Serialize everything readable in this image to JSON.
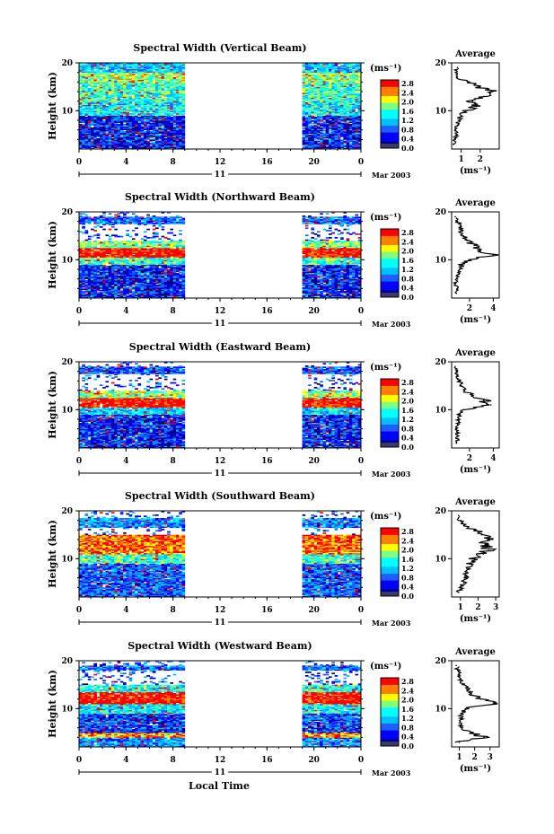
{
  "figure": {
    "x_axis_title": "Local Time",
    "y_axis_title": "Height (km)",
    "date_label": "Mar 2003",
    "day_label": "11",
    "colorbar_unit": "(ms⁻¹)",
    "profile_title": "Average",
    "profile_unit": "(ms⁻¹)",
    "x_ticks": [
      "0",
      "4",
      "8",
      "12",
      "16",
      "20",
      "0"
    ],
    "y_ticks": [
      "20",
      "10"
    ],
    "colorbar_ticks": [
      "2.8",
      "2.4",
      "2.0",
      "1.6",
      "1.2",
      "0.8",
      "0.4",
      "0.0"
    ],
    "colors": {
      "scale": [
        "#00007f",
        "#0000ff",
        "#1f5fff",
        "#00bfff",
        "#00ffff",
        "#7fff7f",
        "#ffff00",
        "#ff7f00",
        "#ff0000"
      ],
      "no_data": "#ffffff",
      "axis": "#000000"
    }
  },
  "chart_data": [
    {
      "type": "heatmap",
      "title": "Spectral Width (Vertical Beam)",
      "xlabel": "Local Time",
      "ylabel": "Height (km)",
      "xlim": [
        0,
        24
      ],
      "ylim": [
        2,
        20
      ],
      "data_gap_hours": [
        8.8,
        18.8
      ],
      "colorbar": {
        "label": "(ms⁻¹)",
        "range": [
          0.0,
          3.0
        ]
      },
      "average_profile": {
        "title": "Average",
        "xlabel": "(ms⁻¹)",
        "xticks": [
          "1",
          "2"
        ],
        "xlim": [
          0.5,
          3.0
        ],
        "height": [
          3,
          4,
          5,
          6,
          7,
          8,
          9,
          10,
          11,
          12,
          13,
          14,
          15,
          16,
          17,
          18,
          19
        ],
        "value": [
          0.6,
          0.7,
          0.8,
          0.7,
          0.8,
          0.9,
          1.0,
          1.3,
          1.8,
          1.6,
          2.2,
          2.6,
          2.0,
          1.4,
          0.8,
          0.7,
          0.8
        ]
      }
    },
    {
      "type": "heatmap",
      "title": "Spectral Width (Northward Beam)",
      "xlabel": "Local Time",
      "ylabel": "Height (km)",
      "xlim": [
        0,
        24
      ],
      "ylim": [
        2,
        20
      ],
      "data_gap_hours": [
        8.8,
        18.8
      ],
      "colorbar": {
        "label": "(ms⁻¹)",
        "range": [
          0.0,
          3.0
        ]
      },
      "average_profile": {
        "title": "Average",
        "xlabel": "(ms⁻¹)",
        "xticks": [
          "2",
          "4"
        ],
        "xlim": [
          0.5,
          4.5
        ],
        "height": [
          3,
          4,
          5,
          6,
          7,
          8,
          9,
          10,
          11,
          12,
          13,
          14,
          15,
          16,
          17,
          18,
          19
        ],
        "value": [
          0.9,
          1.0,
          0.8,
          1.0,
          1.1,
          1.2,
          1.4,
          2.0,
          4.0,
          2.8,
          2.4,
          1.8,
          1.5,
          1.3,
          1.2,
          1.0,
          0.8
        ]
      }
    },
    {
      "type": "heatmap",
      "title": "Spectral Width (Eastward Beam)",
      "xlabel": "Local Time",
      "ylabel": "Height (km)",
      "xlim": [
        0,
        24
      ],
      "ylim": [
        2,
        20
      ],
      "data_gap_hours": [
        8.8,
        18.8
      ],
      "colorbar": {
        "label": "(ms⁻¹)",
        "range": [
          0.0,
          3.0
        ]
      },
      "average_profile": {
        "title": "Average",
        "xlabel": "(ms⁻¹)",
        "xticks": [
          "2",
          "4"
        ],
        "xlim": [
          0.5,
          4.5
        ],
        "height": [
          3,
          4,
          5,
          6,
          7,
          8,
          9,
          10,
          11,
          12,
          13,
          14,
          15,
          16,
          17,
          18,
          19
        ],
        "value": [
          0.9,
          1.0,
          1.0,
          0.9,
          1.0,
          1.1,
          1.2,
          1.5,
          3.8,
          3.2,
          2.2,
          1.6,
          1.3,
          1.2,
          1.0,
          0.9,
          0.8
        ]
      }
    },
    {
      "type": "heatmap",
      "title": "Spectral Width (Southward Beam)",
      "xlabel": "Local Time",
      "ylabel": "Height (km)",
      "xlim": [
        0,
        24
      ],
      "ylim": [
        2,
        20
      ],
      "data_gap_hours": [
        8.8,
        18.8
      ],
      "colorbar": {
        "label": "(ms⁻¹)",
        "range": [
          0.0,
          3.0
        ]
      },
      "average_profile": {
        "title": "Average",
        "xlabel": "(ms⁻¹)",
        "xticks": [
          "1",
          "2",
          "3"
        ],
        "xlim": [
          0.5,
          3.2
        ],
        "height": [
          3,
          4,
          5,
          6,
          7,
          8,
          9,
          10,
          11,
          12,
          13,
          14,
          15,
          16,
          17,
          18,
          19
        ],
        "value": [
          0.9,
          1.0,
          1.2,
          1.4,
          1.3,
          1.5,
          1.6,
          1.8,
          2.3,
          2.6,
          2.4,
          2.8,
          2.2,
          1.8,
          1.2,
          1.0,
          0.9
        ]
      }
    },
    {
      "type": "heatmap",
      "title": "Spectral Width (Westward Beam)",
      "xlabel": "Local Time",
      "ylabel": "Height (km)",
      "xlim": [
        0,
        24
      ],
      "ylim": [
        2,
        20
      ],
      "data_gap_hours": [
        8.8,
        18.8
      ],
      "colorbar": {
        "label": "(ms⁻¹)",
        "range": [
          0.0,
          3.0
        ]
      },
      "average_profile": {
        "title": "Average",
        "xlabel": "(ms⁻¹)",
        "xticks": [
          "1",
          "2",
          "3"
        ],
        "xlim": [
          0.5,
          3.6
        ],
        "height": [
          3,
          4,
          5,
          6,
          7,
          8,
          9,
          10,
          11,
          12,
          13,
          14,
          15,
          16,
          17,
          18,
          19
        ],
        "value": [
          1.0,
          2.6,
          1.8,
          1.2,
          1.0,
          1.1,
          1.2,
          1.4,
          3.4,
          2.4,
          1.8,
          1.5,
          1.2,
          1.1,
          1.0,
          0.9,
          0.8
        ]
      }
    }
  ]
}
